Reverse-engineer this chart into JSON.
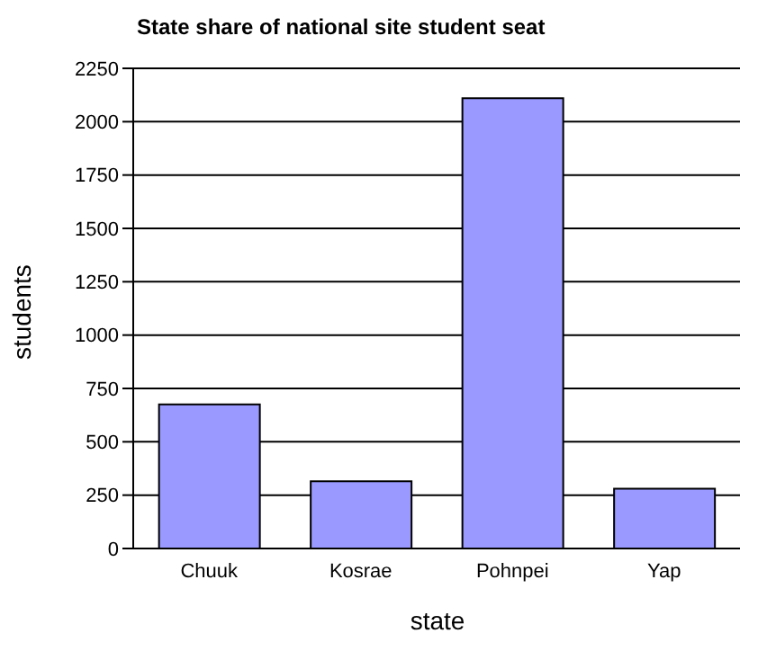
{
  "chart_data": {
    "type": "bar",
    "title": "State share of national site student seat",
    "xlabel": "state",
    "ylabel": "students",
    "categories": [
      "Chuuk",
      "Kosrae",
      "Pohnpei",
      "Yap"
    ],
    "values": [
      675,
      315,
      2110,
      280
    ],
    "color": "#9999ff",
    "ylim": [
      0,
      2250
    ],
    "yticks": [
      0,
      250,
      500,
      750,
      1000,
      1250,
      1500,
      1750,
      2000,
      2250
    ],
    "grid": "y"
  }
}
